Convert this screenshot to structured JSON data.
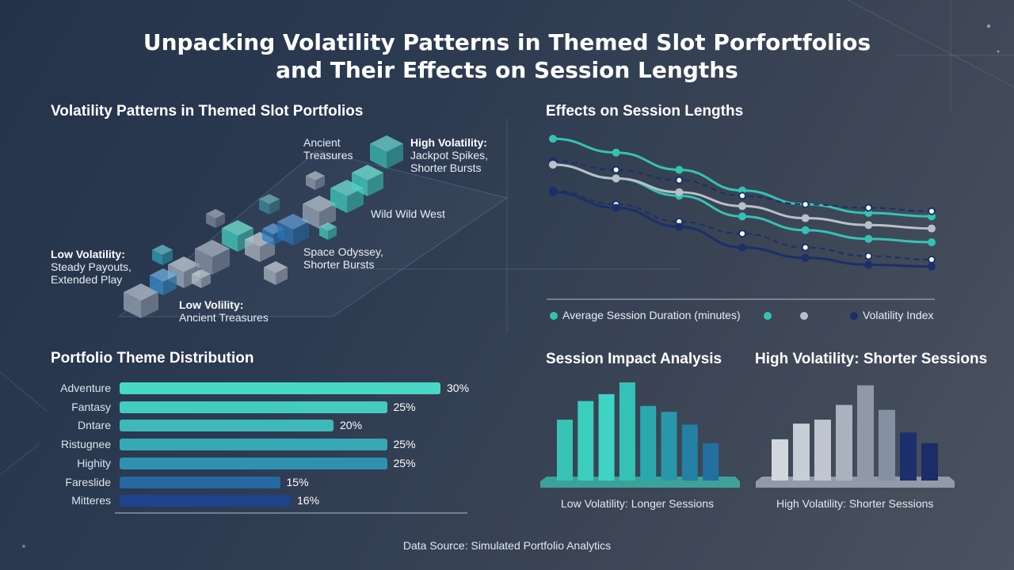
{
  "title": {
    "line1": "Unpacking Volatility Patterns in Themed Slot Porfortfolios",
    "line2": "and Their Effects on Session Lengths"
  },
  "volatility_panel": {
    "title": "Volatility Patterns in Themed Slot Portfolios",
    "labels": {
      "ancient_line1": "Ancient",
      "ancient_line2": "Treasures",
      "high_lead": "High Volatility:",
      "high_line2": "Jackpot Spikes,",
      "high_line3": "Shorter Bursts",
      "wild_west": "Wild Wild West",
      "low_lead": "Low Volatility:",
      "low_line2": "Steady Payouts,",
      "low_line3": "Extended Play",
      "space_line1": "Space Odyssey,",
      "space_line2": "Shorter Bursts",
      "lowvol_lead": "Low Volility:",
      "lowvol_line2": "Ancient Treasures"
    }
  },
  "session_panel": {
    "title": "Effects on Session Lengths",
    "legend": {
      "item1": "Average Session Duration (minutes)",
      "item4": "Volatility Index"
    }
  },
  "distribution_panel": {
    "title": "Portfolio Theme Distribution"
  },
  "impact_panel": {
    "title": "Session Impact Analysis",
    "caption": "Low Volatility: Longer Sessions"
  },
  "high_panel": {
    "title": "High Volatility: Shorter Sessions",
    "caption": "High Volatility: Shorter Sessions"
  },
  "footer": {
    "source": "Data Source: Simulated Portfolio Analytics"
  },
  "colors": {
    "teal": "#34c3b3",
    "light_gray": "#b9c0c8",
    "navy": "#1b2f6a",
    "bar_start": "#45d6c2",
    "bar_end": "#1f3f86"
  },
  "chart_data": [
    {
      "type": "bar",
      "orientation": "horizontal",
      "title": "Portfolio Theme Distribution",
      "categories": [
        "Adventure",
        "Fantasy",
        "Dntare",
        "Ristugnee",
        "Highity",
        "Fareslide",
        "Mitteres"
      ],
      "values": [
        30,
        25,
        20,
        25,
        25,
        15,
        16
      ],
      "value_labels": [
        "30%",
        "25%",
        "20%",
        "25%",
        "25%",
        "15%",
        "16%"
      ],
      "grid": false
    },
    {
      "type": "line",
      "title": "Effects on Session Lengths",
      "x": [
        1,
        2,
        3,
        4,
        5,
        6,
        7
      ],
      "legend_position": "bottom",
      "grid": false,
      "series": [
        {
          "name": "Average Session Duration (minutes)",
          "color": "#34c3b3",
          "style": "solid",
          "values": [
            0.93,
            0.85,
            0.75,
            0.63,
            0.55,
            0.5,
            0.48
          ]
        },
        {
          "color": "#34c3b3",
          "style": "solid",
          "values": [
            0.78,
            0.7,
            0.6,
            0.48,
            0.4,
            0.35,
            0.33
          ]
        },
        {
          "color": "#1b2f6a",
          "style": "dashed",
          "values": [
            0.8,
            0.75,
            0.69,
            0.6,
            0.55,
            0.53,
            0.51
          ]
        },
        {
          "color": "#b9c0c8",
          "style": "solid",
          "values": [
            0.78,
            0.7,
            0.62,
            0.54,
            0.47,
            0.43,
            0.41
          ]
        },
        {
          "color": "#1b2f6a",
          "style": "dashed",
          "values": [
            0.63,
            0.55,
            0.45,
            0.38,
            0.3,
            0.25,
            0.23
          ]
        },
        {
          "name": "Volatility Index",
          "color": "#1b2f6a",
          "style": "solid",
          "values": [
            0.62,
            0.53,
            0.42,
            0.3,
            0.24,
            0.2,
            0.19
          ]
        }
      ]
    },
    {
      "type": "bar",
      "title": "Session Impact Analysis",
      "caption": "Low Volatility: Longer Sessions",
      "values": [
        62,
        81,
        88,
        100,
        76,
        70,
        57,
        38
      ]
    },
    {
      "type": "bar",
      "title": "High Volatility: Shorter Sessions",
      "caption": "High Volatility: Shorter Sessions",
      "values": [
        42,
        58,
        62,
        77,
        97,
        72,
        49,
        38
      ]
    }
  ]
}
